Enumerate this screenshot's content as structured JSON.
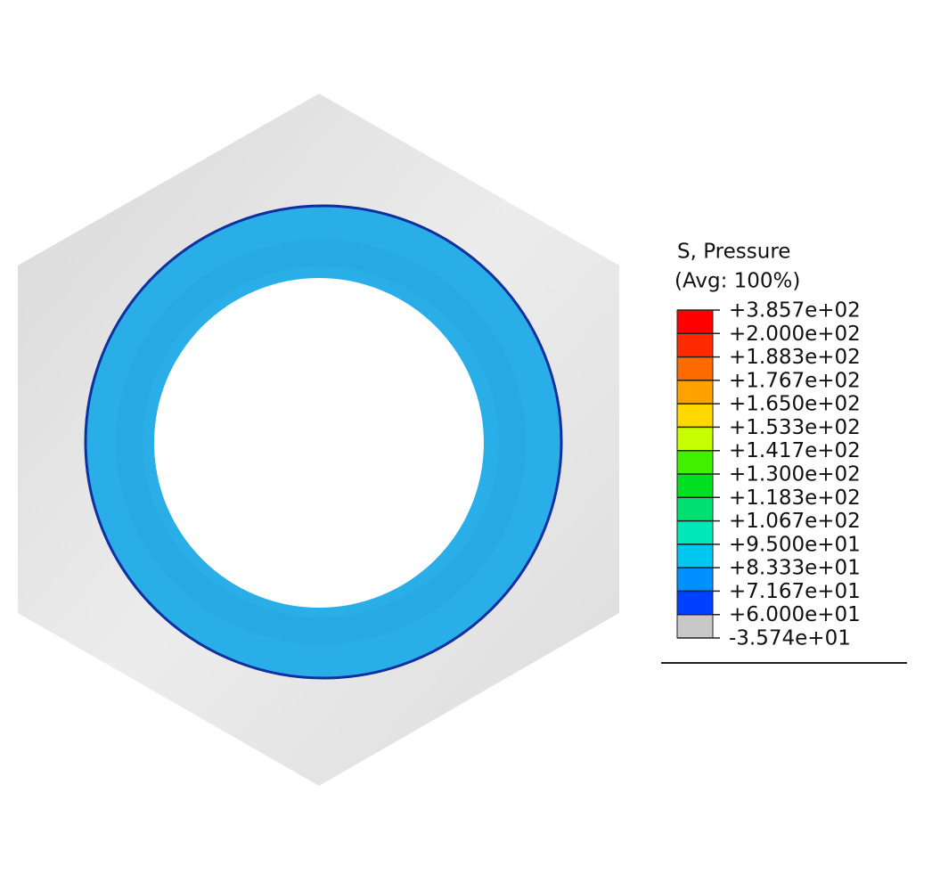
{
  "legend": {
    "title": [
      "S, Pressure",
      "(Avg: 100%)"
    ],
    "labels": [
      "+3.857e+02",
      "+2.000e+02",
      "+1.883e+02",
      "+1.767e+02",
      "+1.650e+02",
      "+1.533e+02",
      "+1.417e+02",
      "+1.300e+02",
      "+1.183e+02",
      "+1.067e+02",
      "+9.500e+01",
      "+8.333e+01",
      "+7.167e+01",
      "+6.000e+01",
      "-3.574e+01"
    ],
    "colors": [
      "#ff0000",
      "#ff2a00",
      "#ff6a00",
      "#ffa200",
      "#ffd800",
      "#c8ff00",
      "#40f000",
      "#00e020",
      "#00e070",
      "#00e8b8",
      "#00c8f0",
      "#0090ff",
      "#0040ff",
      "#c8c8c8"
    ]
  }
}
